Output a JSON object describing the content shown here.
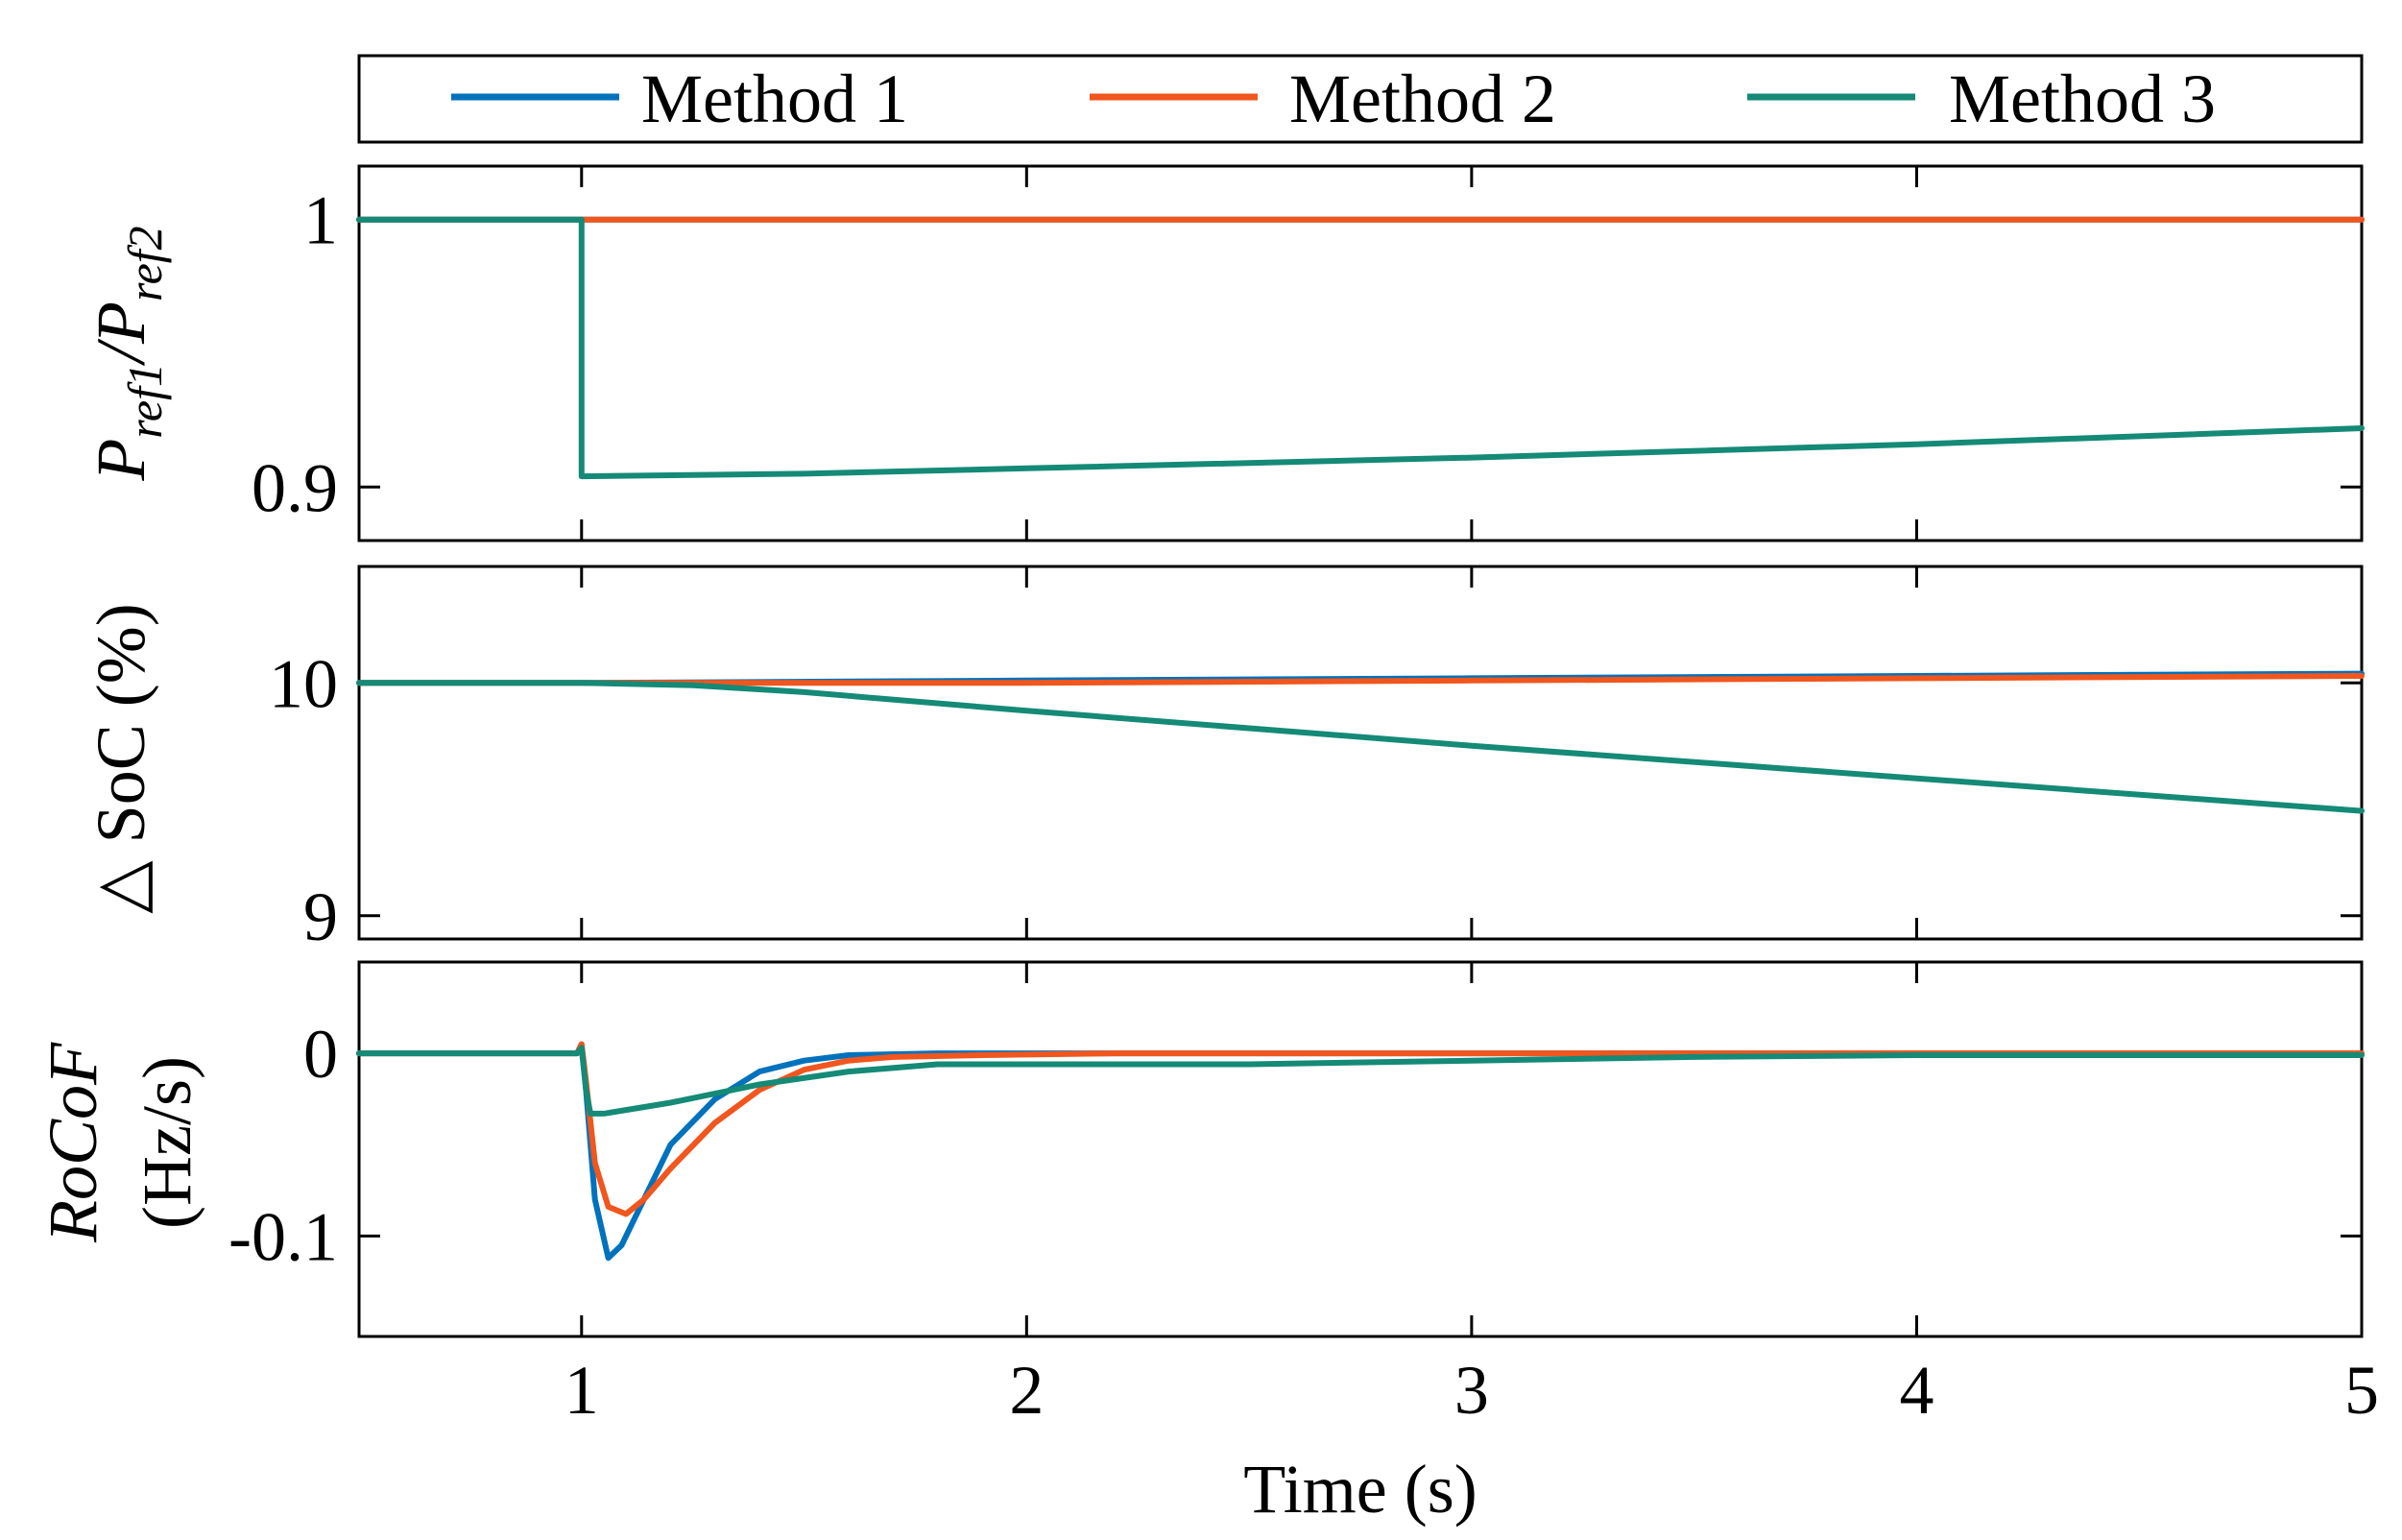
{
  "chart_data": {
    "type": "line",
    "xlabel": "Time (s)",
    "xlim": [
      0.5,
      5
    ],
    "xticks": [
      1,
      2,
      3,
      4,
      5
    ],
    "xtick_labels": [
      "1",
      "2",
      "3",
      "4",
      "5"
    ],
    "legend": {
      "placement": "top",
      "entries": [
        {
          "name": "Method 1",
          "color": "#0072BD"
        },
        {
          "name": "Method 2",
          "color": "#F0561D"
        },
        {
          "name": "Method 3",
          "color": "#148A77"
        }
      ]
    },
    "subplots": [
      {
        "ylabel_base": "P",
        "ylabel_sub1": "ref1",
        "ylabel_sep": "/P",
        "ylabel_sub2": "ref2",
        "ylim": [
          0.88,
          1.02
        ],
        "yticks": [
          0.9,
          1
        ],
        "ytick_labels": [
          "0.9",
          "1"
        ],
        "series": [
          {
            "name": "Method 1",
            "x": [
              0.5,
              5
            ],
            "y": [
              1.0,
              1.0
            ]
          },
          {
            "name": "Method 2",
            "x": [
              0.5,
              5
            ],
            "y": [
              1.0,
              1.0
            ]
          },
          {
            "name": "Method 3",
            "x": [
              0.5,
              1.0,
              1.0,
              1.5,
              2,
              3,
              4,
              5
            ],
            "y": [
              1.0,
              1.0,
              0.904,
              0.905,
              0.907,
              0.911,
              0.916,
              0.922
            ]
          }
        ]
      },
      {
        "ylabel": "△ SoC (%)",
        "ylim": [
          8.9,
          10.5
        ],
        "yticks": [
          9,
          10
        ],
        "ytick_labels": [
          "9",
          "10"
        ],
        "series": [
          {
            "name": "Method 1",
            "x": [
              0.5,
              1,
              2,
              3,
              4,
              5
            ],
            "y": [
              10.0,
              10.0,
              10.01,
              10.02,
              10.03,
              10.04
            ]
          },
          {
            "name": "Method 2",
            "x": [
              0.5,
              1,
              2,
              3,
              4,
              5
            ],
            "y": [
              10.0,
              10.0,
              10.0,
              10.01,
              10.02,
              10.03
            ]
          },
          {
            "name": "Method 3",
            "x": [
              0.5,
              1,
              1.25,
              1.5,
              2,
              3,
              4,
              5
            ],
            "y": [
              10.0,
              10.0,
              9.99,
              9.96,
              9.88,
              9.73,
              9.59,
              9.45
            ]
          }
        ]
      },
      {
        "ylabel_line1": "RoCoF",
        "ylabel_line2": "(Hz/s)",
        "ylim": [
          -0.155,
          0.05
        ],
        "yticks": [
          -0.1,
          0
        ],
        "ytick_labels": [
          "-0.1",
          "0"
        ],
        "series": [
          {
            "name": "Method 1",
            "x": [
              0.5,
              0.99,
              1.0,
              1.01,
              1.03,
              1.06,
              1.09,
              1.12,
              1.16,
              1.2,
              1.3,
              1.4,
              1.5,
              1.6,
              1.8,
              2.0,
              5.0
            ],
            "y": [
              0,
              0,
              0.005,
              -0.02,
              -0.08,
              -0.112,
              -0.105,
              -0.09,
              -0.07,
              -0.05,
              -0.025,
              -0.01,
              -0.004,
              -0.001,
              0,
              0,
              0
            ]
          },
          {
            "name": "Method 2",
            "x": [
              0.5,
              0.99,
              1.0,
              1.01,
              1.03,
              1.06,
              1.1,
              1.14,
              1.2,
              1.3,
              1.4,
              1.5,
              1.6,
              1.7,
              1.9,
              2.2,
              5.0
            ],
            "y": [
              0,
              0,
              0.005,
              -0.015,
              -0.06,
              -0.084,
              -0.088,
              -0.08,
              -0.063,
              -0.038,
              -0.02,
              -0.009,
              -0.004,
              -0.002,
              -0.001,
              0,
              0
            ]
          },
          {
            "name": "Method 3",
            "x": [
              0.5,
              0.99,
              1.0,
              1.01,
              1.02,
              1.05,
              1.2,
              1.4,
              1.6,
              1.8,
              2.0,
              2.5,
              3.0,
              3.5,
              4.0,
              5.0
            ],
            "y": [
              0,
              0,
              0.003,
              -0.02,
              -0.033,
              -0.033,
              -0.027,
              -0.017,
              -0.01,
              -0.006,
              -0.006,
              -0.006,
              -0.004,
              -0.002,
              -0.001,
              -0.001
            ]
          }
        ]
      }
    ]
  }
}
